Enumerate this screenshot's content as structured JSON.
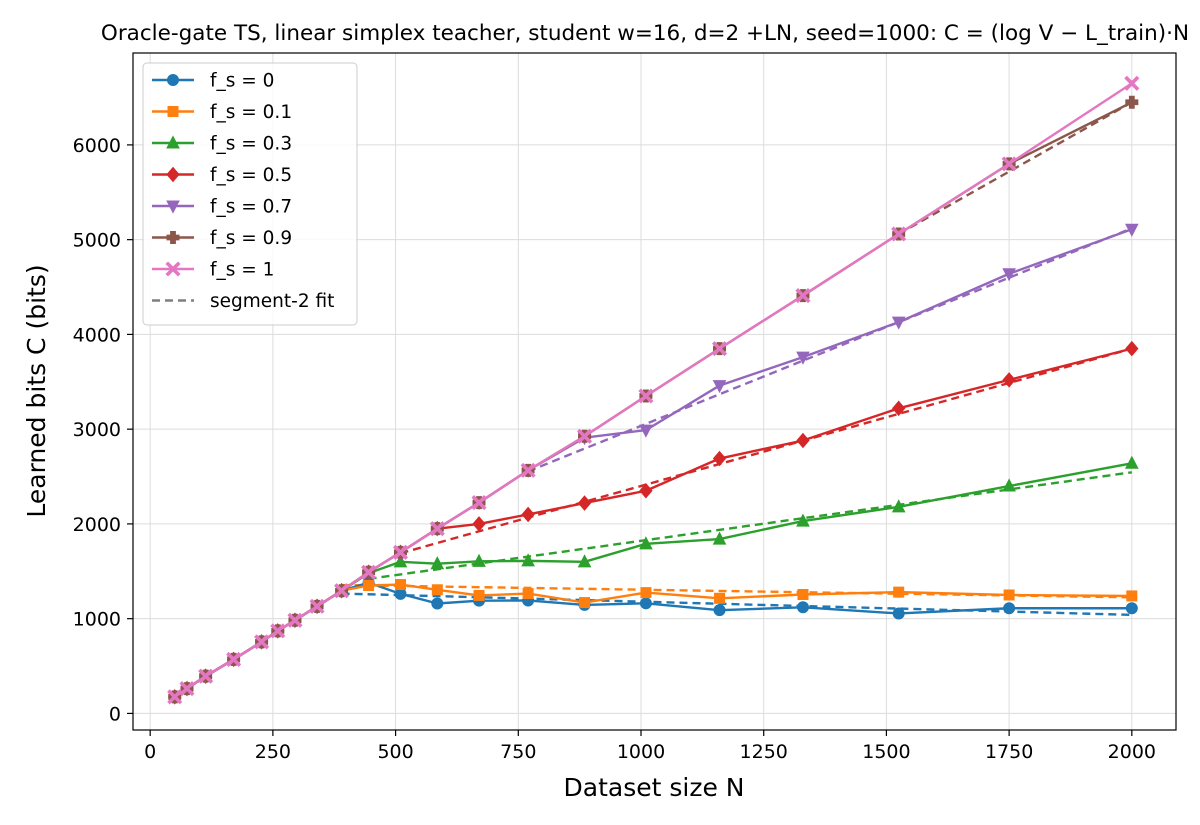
{
  "chart_data": {
    "type": "line",
    "title": "Oracle-gate TS, linear simplex teacher, student w=16, d=2 +LN, seed=1000: C = (log V − L_train)·N",
    "xlabel": "Dataset size N",
    "ylabel": "Learned bits C (bits)",
    "xlim": [
      -35,
      2090
    ],
    "ylim": [
      -175,
      6970
    ],
    "xticks": [
      0,
      250,
      500,
      750,
      1000,
      1250,
      1500,
      1750,
      2000
    ],
    "yticks": [
      0,
      1000,
      2000,
      3000,
      4000,
      5000,
      6000
    ],
    "grid": true,
    "legend_position": "top-left",
    "x": [
      50,
      75,
      113,
      170,
      227,
      260,
      295,
      340,
      390,
      445,
      510,
      585,
      670,
      770,
      885,
      1010,
      1160,
      1330,
      1525,
      1750,
      2000
    ],
    "series": [
      {
        "name": "f_s = 0",
        "color": "#1f77b4",
        "marker": "circle",
        "values": [
          175,
          262,
          393,
          570,
          755,
          871,
          983,
          1130,
          1295,
          1380,
          1262,
          1160,
          1190,
          1192,
          1145,
          1162,
          1090,
          1120,
          1055,
          1110,
          1110
        ],
        "fit": [
          [
            390,
            1265
          ],
          [
            2000,
            1040
          ]
        ]
      },
      {
        "name": "f_s = 0.1",
        "color": "#ff7f0e",
        "marker": "square",
        "values": [
          175,
          262,
          393,
          570,
          755,
          871,
          983,
          1130,
          1295,
          1350,
          1360,
          1305,
          1245,
          1265,
          1170,
          1275,
          1215,
          1255,
          1280,
          1250,
          1240
        ],
        "fit": [
          [
            390,
            1355
          ],
          [
            2000,
            1225
          ]
        ]
      },
      {
        "name": "f_s = 0.3",
        "color": "#2ca02c",
        "marker": "triangle-up",
        "values": [
          175,
          262,
          393,
          570,
          755,
          871,
          983,
          1130,
          1295,
          1480,
          1600,
          1580,
          1605,
          1610,
          1600,
          1790,
          1840,
          2030,
          2180,
          2400,
          2640
        ],
        "fit": [
          [
            445,
            1420
          ],
          [
            2000,
            2545
          ]
        ]
      },
      {
        "name": "f_s = 0.5",
        "color": "#d62728",
        "marker": "diamond",
        "values": [
          175,
          262,
          393,
          570,
          755,
          871,
          983,
          1130,
          1295,
          1490,
          1700,
          1950,
          2000,
          2100,
          2220,
          2350,
          2690,
          2880,
          3220,
          3520,
          3850
        ],
        "fit": [
          [
            510,
            1690
          ],
          [
            2000,
            3850
          ]
        ]
      },
      {
        "name": "f_s = 0.7",
        "color": "#9467bd",
        "marker": "triangle-down",
        "values": [
          175,
          262,
          393,
          570,
          755,
          871,
          983,
          1130,
          1295,
          1490,
          1700,
          1950,
          2225,
          2565,
          2910,
          2990,
          3460,
          3760,
          4130,
          4640,
          5110
        ],
        "fit": [
          [
            770,
            2555
          ],
          [
            2000,
            5120
          ]
        ]
      },
      {
        "name": "f_s = 0.9",
        "color": "#8c564b",
        "marker": "plus",
        "values": [
          175,
          262,
          393,
          570,
          755,
          871,
          983,
          1130,
          1295,
          1490,
          1700,
          1950,
          2225,
          2565,
          2925,
          3350,
          3850,
          4410,
          5060,
          5800,
          6450
        ],
        "fit": [
          [
            1525,
            5060
          ],
          [
            2000,
            6450
          ]
        ]
      },
      {
        "name": "f_s = 1",
        "color": "#e377c2",
        "marker": "x",
        "values": [
          175,
          262,
          393,
          570,
          755,
          871,
          983,
          1130,
          1295,
          1490,
          1700,
          1950,
          2225,
          2565,
          2925,
          3350,
          3850,
          4410,
          5060,
          5800,
          6650
        ],
        "fit": null
      }
    ],
    "fit_legend_label": "segment-2 fit",
    "fit_legend_color": "#7f7f7f"
  }
}
